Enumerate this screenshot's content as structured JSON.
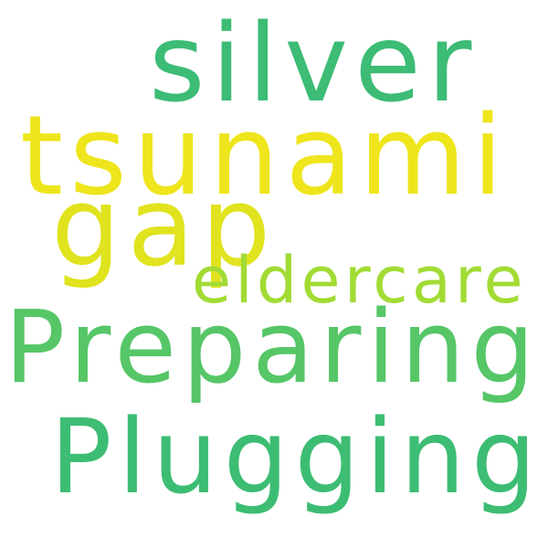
{
  "words": [
    {
      "text": "silver",
      "color": "#3cbc75"
    },
    {
      "text": "tsunami",
      "color": "#eee51c"
    },
    {
      "text": "gap",
      "color": "#e0e31e"
    },
    {
      "text": "eldercare",
      "color": "#a2db34"
    },
    {
      "text": "Preparing",
      "color": "#56c667"
    },
    {
      "text": "Plugging",
      "color": "#3dbd73"
    }
  ]
}
